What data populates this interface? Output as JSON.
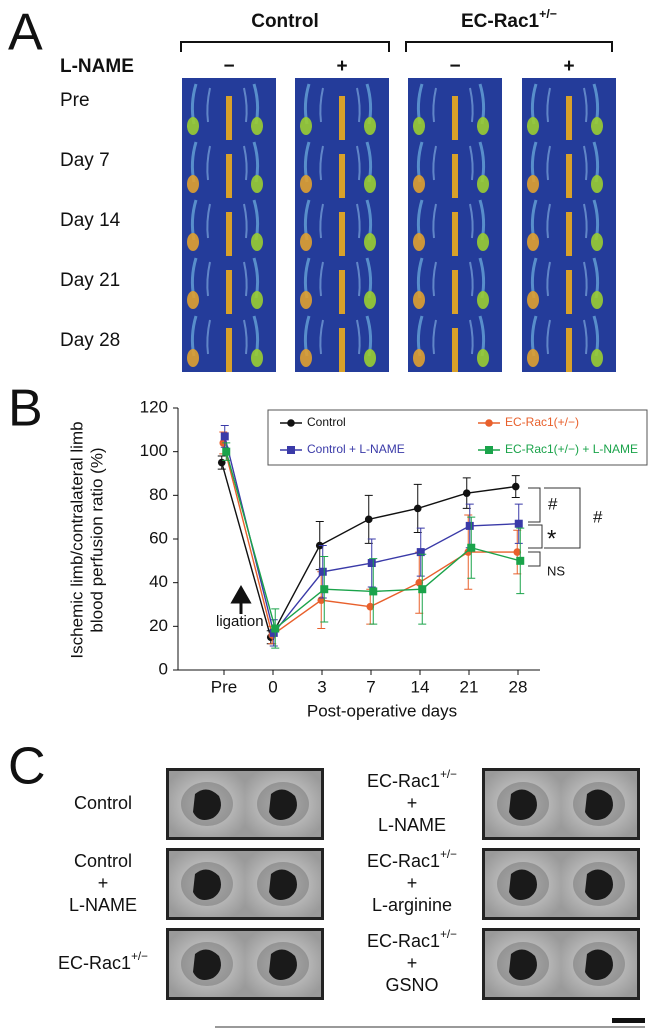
{
  "panel_a": {
    "label": "A",
    "groups": [
      {
        "name": "Control"
      },
      {
        "name": "EC-Rac1",
        "sup": "+/−"
      }
    ],
    "lname_label": "L-NAME",
    "signs": [
      "−",
      "+",
      "−",
      "+"
    ],
    "rows": [
      "Pre",
      "Day  7",
      "Day 14",
      "Day 21",
      "Day 28"
    ]
  },
  "panel_b_label": "B",
  "chart_data": {
    "type": "line",
    "ylabel": [
      "Ischemic limb/contralateral limb",
      "blood perfusion ratio (%)"
    ],
    "xlabel": "Post-operative days",
    "categories": [
      "Pre",
      "0",
      "3",
      "7",
      "14",
      "21",
      "28"
    ],
    "ylim": [
      0,
      120
    ],
    "yticks": [
      0,
      20,
      40,
      60,
      80,
      100,
      120
    ],
    "series": [
      {
        "name": "Control",
        "color": "#111111",
        "marker": "circle",
        "values": [
          95,
          15,
          57,
          69,
          74,
          81,
          84
        ],
        "errors": [
          3,
          3,
          11,
          11,
          11,
          7,
          5
        ]
      },
      {
        "name": "EC-Rac1(+/−)",
        "color": "#e8602c",
        "marker": "circle",
        "values": [
          104,
          16,
          32,
          29,
          40,
          54,
          54
        ],
        "errors": [
          5,
          4,
          13,
          8,
          14,
          17,
          10
        ]
      },
      {
        "name": "Control + L-NAME",
        "color": "#3a3aa8",
        "marker": "square",
        "values": [
          107,
          17,
          45,
          49,
          54,
          66,
          67
        ],
        "errors": [
          5,
          6,
          12,
          11,
          11,
          10,
          9
        ]
      },
      {
        "name": "EC-Rac1(+/−) + L-NAME",
        "color": "#1aa34a",
        "marker": "square",
        "values": [
          100,
          19,
          37,
          36,
          37,
          56,
          50
        ],
        "errors": [
          4,
          9,
          15,
          15,
          16,
          14,
          15
        ]
      }
    ],
    "annotations": {
      "ligation": "ligation",
      "hash_inner": "#",
      "hash_outer": "#",
      "star": "*",
      "ns": "NS"
    }
  },
  "panel_c": {
    "label": "C",
    "conditions": [
      {
        "name": "Control"
      },
      {
        "name": "Control",
        "plus": "+",
        "treatment": "L-NAME"
      },
      {
        "name": "EC-Rac1",
        "sup": "+/−"
      },
      {
        "name": "EC-Rac1",
        "sup": "+/−",
        "plus": "+",
        "treatment": "L-NAME"
      },
      {
        "name": "EC-Rac1",
        "sup": "+/−",
        "plus": "+",
        "treatment": "L-arginine"
      },
      {
        "name": "EC-Rac1",
        "sup": "+/−",
        "plus": "+",
        "treatment": "GSNO"
      }
    ]
  }
}
